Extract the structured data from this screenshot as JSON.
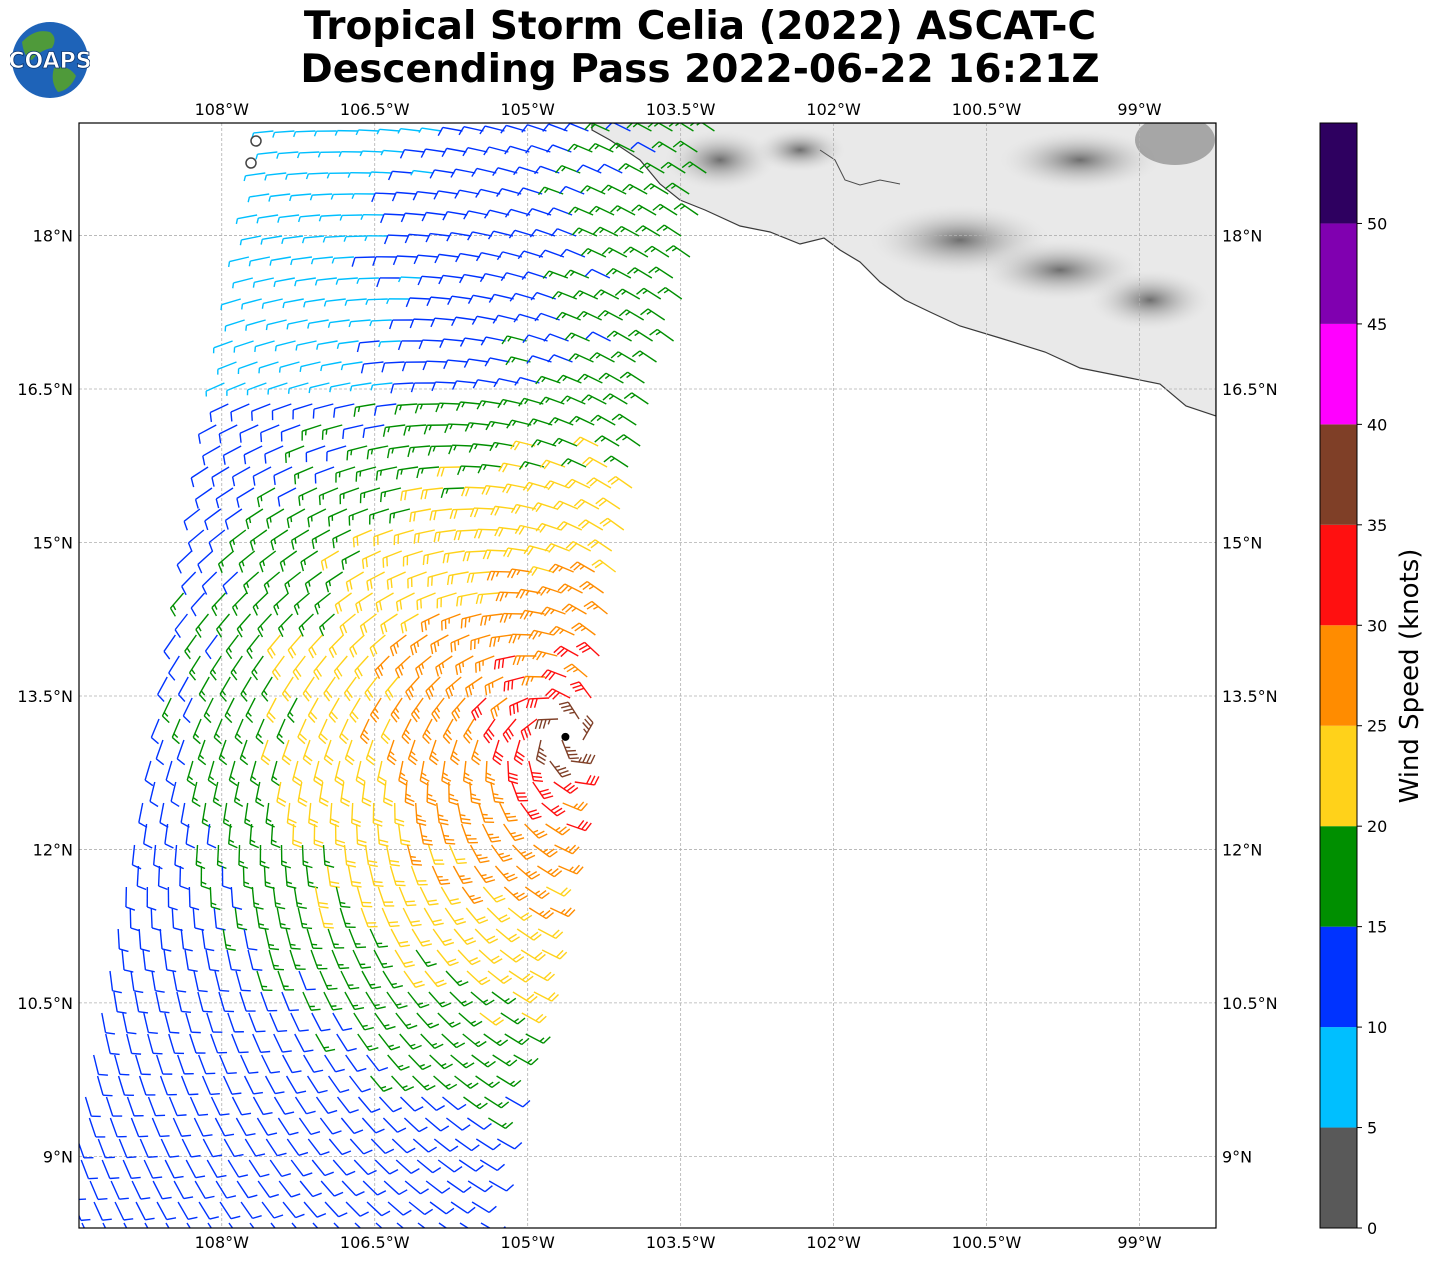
{
  "title": {
    "line1": "Tropical Storm Celia (2022) ASCAT-C",
    "line2": "Descending Pass 2022-06-22 16:21Z"
  },
  "logo": {
    "text": "COAPS",
    "colors": {
      "ocean": "#1e63b8",
      "land": "#4f9a3a",
      "text": "#ffffff"
    }
  },
  "map": {
    "lon_ticks": [
      "108°W",
      "106.5°W",
      "105°W",
      "103.5°W",
      "102°W",
      "100.5°W",
      "99°W"
    ],
    "lat_ticks": [
      "18°N",
      "16.5°N",
      "15°N",
      "13.5°N",
      "12°N",
      "10.5°N",
      "9°N"
    ],
    "lon_values": [
      -108,
      -106.5,
      -105,
      -103.5,
      -102,
      -100.5,
      -99
    ],
    "lat_values": [
      18,
      16.5,
      15,
      13.5,
      12,
      10.5,
      9
    ],
    "lon_range": [
      -109.4,
      -98.25
    ],
    "lat_range": [
      8.3,
      19.1
    ],
    "storm_center": {
      "lon": -104.63,
      "lat": 13.1
    }
  },
  "colorbar": {
    "label": "Wind Speed (knots)",
    "ticks": [
      "0",
      "5",
      "10",
      "15",
      "20",
      "25",
      "30",
      "35",
      "40",
      "45",
      "50"
    ],
    "bins": [
      {
        "min": 0,
        "max": 5,
        "color": "#595959"
      },
      {
        "min": 5,
        "max": 10,
        "color": "#00bfff"
      },
      {
        "min": 10,
        "max": 15,
        "color": "#0033ff"
      },
      {
        "min": 15,
        "max": 20,
        "color": "#008f00"
      },
      {
        "min": 20,
        "max": 25,
        "color": "#ffd21a"
      },
      {
        "min": 25,
        "max": 30,
        "color": "#ff8c00"
      },
      {
        "min": 30,
        "max": 35,
        "color": "#ff1010"
      },
      {
        "min": 35,
        "max": 40,
        "color": "#7f3f27"
      },
      {
        "min": 40,
        "max": 45,
        "color": "#ff00ff"
      },
      {
        "min": 45,
        "max": 50,
        "color": "#8000b0"
      },
      {
        "min": 50,
        "max": 55,
        "color": "#2e0060"
      }
    ]
  }
}
